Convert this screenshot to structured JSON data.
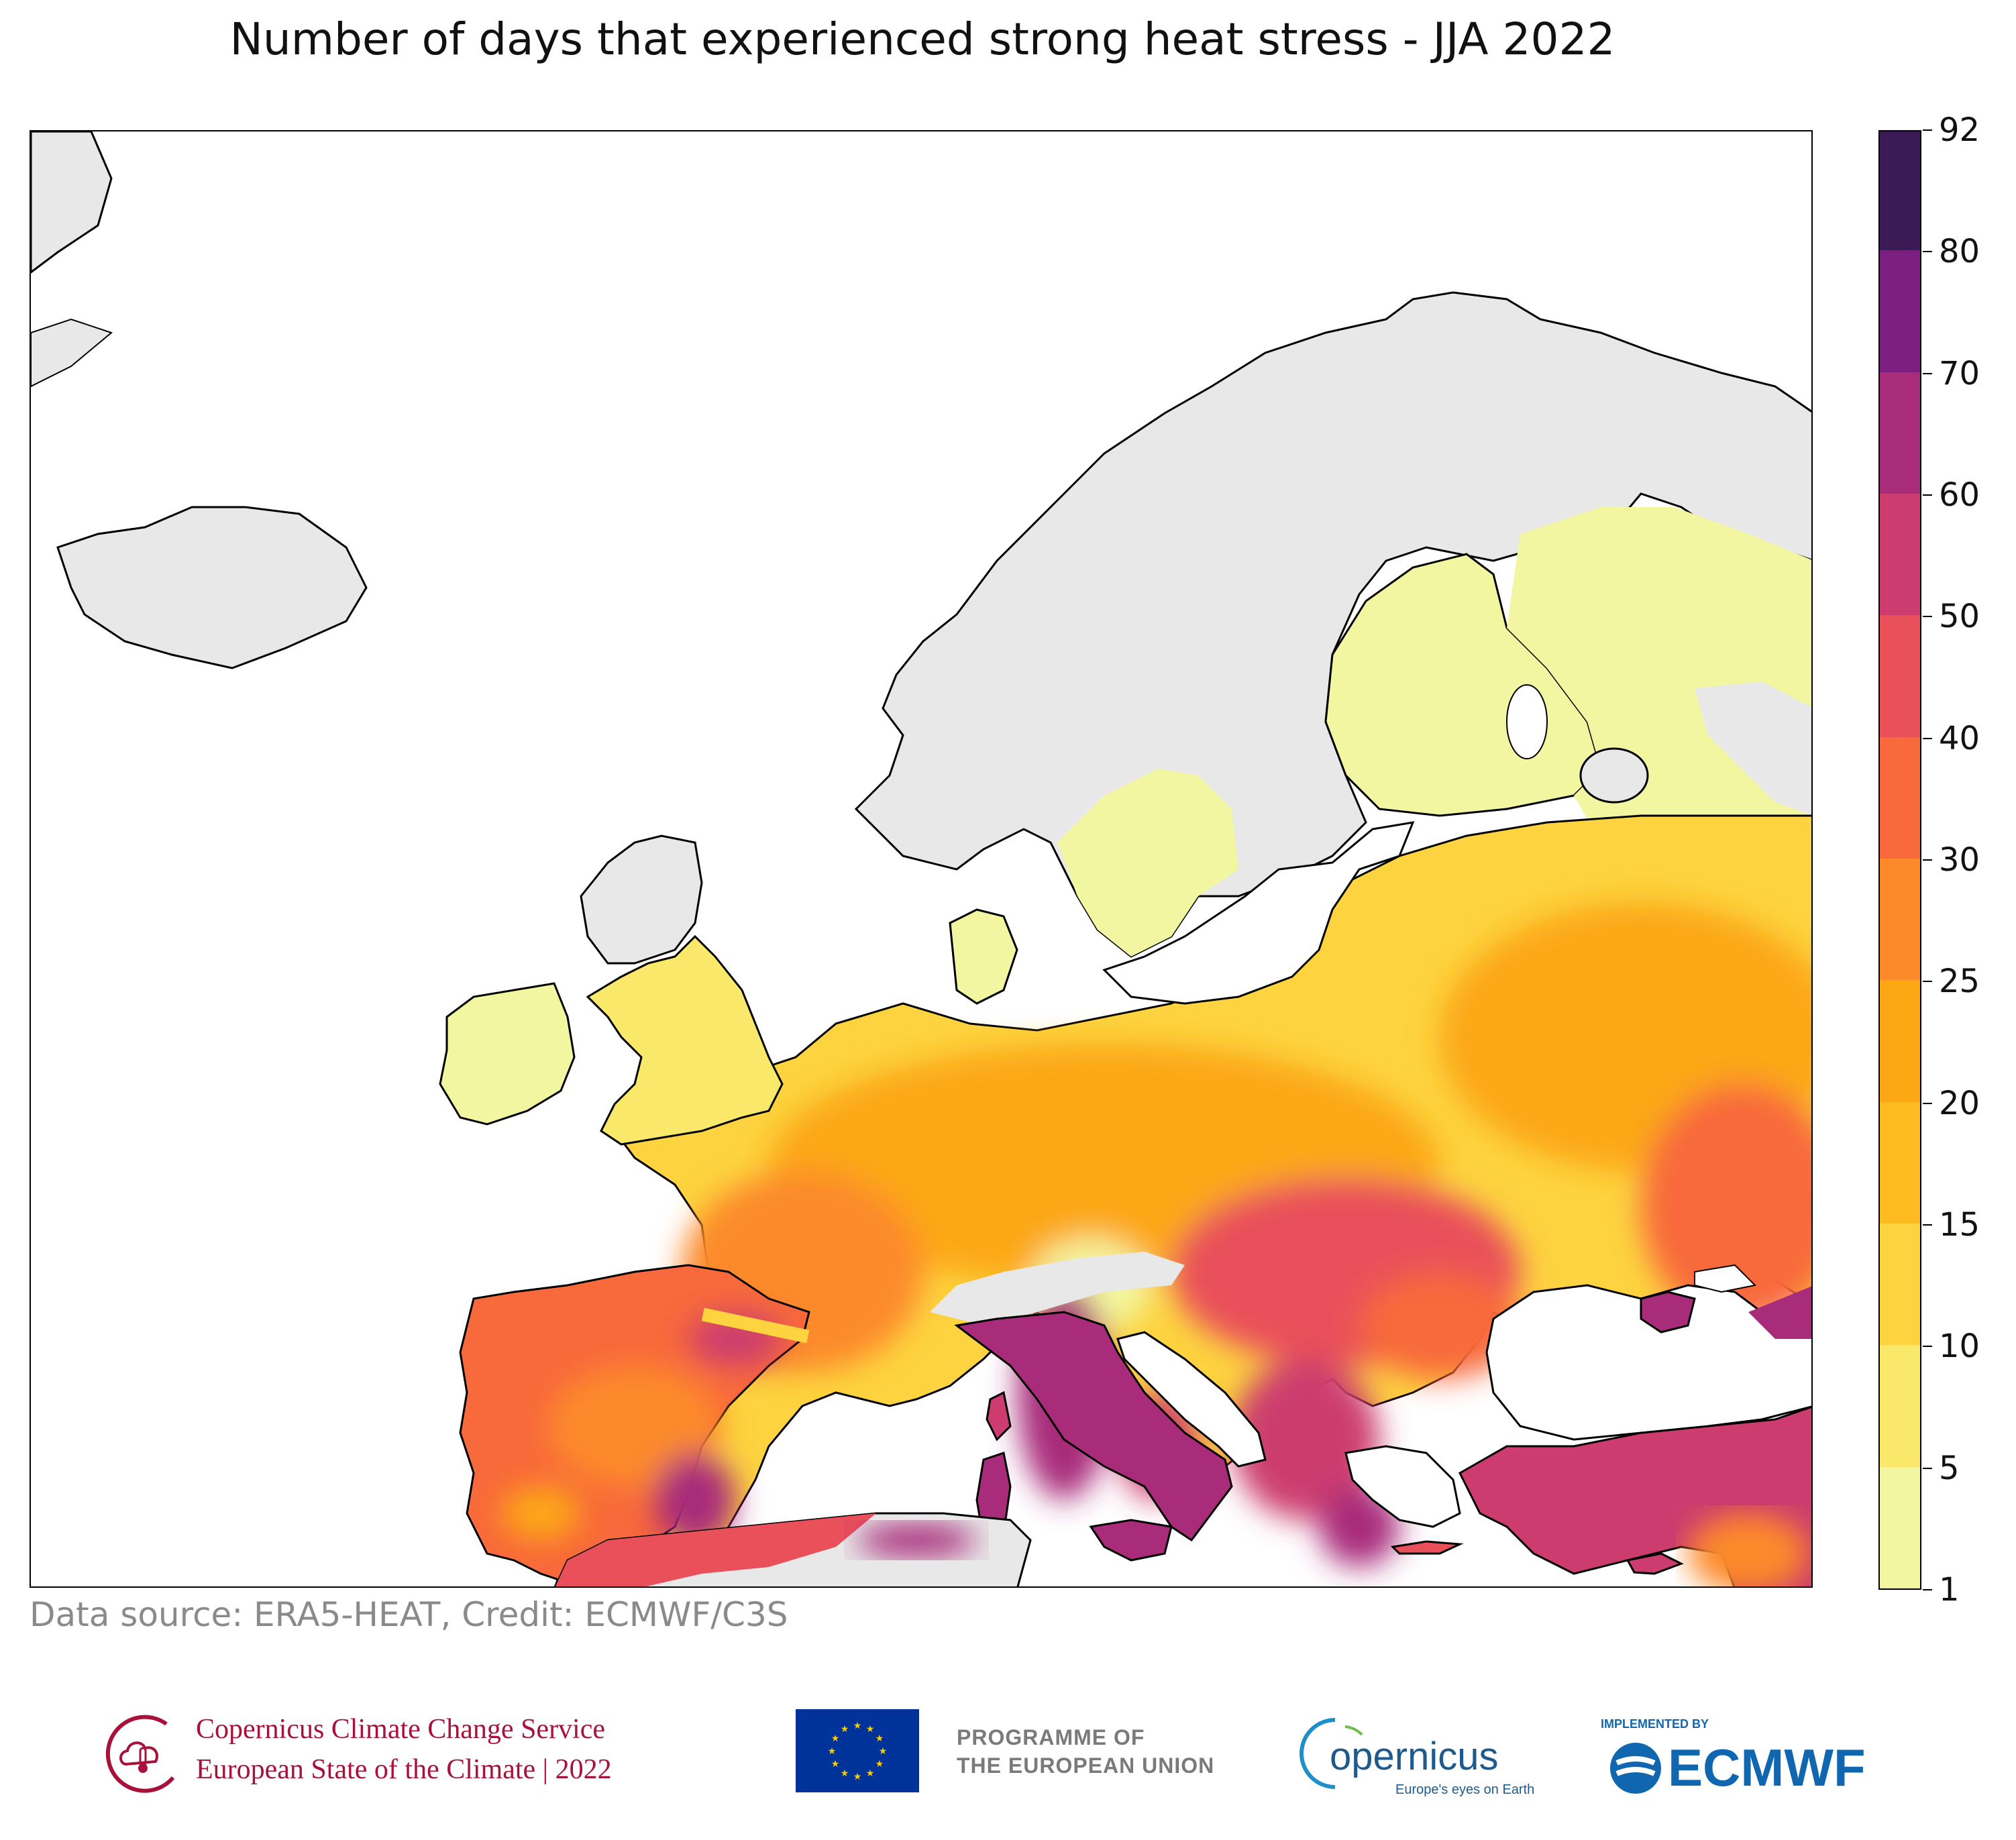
{
  "title": "Number of days that experienced strong heat stress - JJA 2022",
  "source_note": "Data source: ERA5-HEAT, Credit: ECMWF/C3S",
  "colorbar": {
    "ticks": [
      "1",
      "5",
      "10",
      "15",
      "20",
      "25",
      "30",
      "40",
      "50",
      "60",
      "70",
      "80",
      "92"
    ],
    "colors": [
      "#f3f6a0",
      "#f9e86a",
      "#fdd33f",
      "#fdbb1f",
      "#fca714",
      "#fc8a2a",
      "#f8693b",
      "#e9505a",
      "#cc3c6e",
      "#a82c7a",
      "#7c1f80",
      "#3c1a55"
    ]
  },
  "map": {
    "land_no_data_color": "#e8e8e8",
    "sea_color": "#ffffff",
    "coastline_color": "#000000"
  },
  "footer": {
    "c3s_line1": "Copernicus Climate Change Service",
    "c3s_line2": "European State of the Climate | 2022",
    "eu_line1": "PROGRAMME OF",
    "eu_line2": "THE EUROPEAN UNION",
    "copernicus_name": "opernicus",
    "copernicus_tagline": "Europe's eyes on Earth",
    "ecmwf_tag": "IMPLEMENTED BY",
    "ecmwf_name": "ECMWF"
  }
}
